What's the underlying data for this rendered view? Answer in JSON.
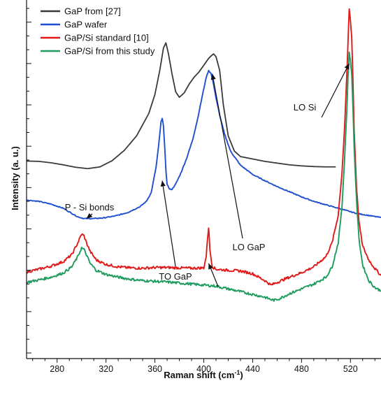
{
  "chart_data": {
    "type": "line",
    "xlabel": "Raman shift (cm",
    "xlabel_sup": "-1",
    "xlabel_end": ")",
    "ylabel": "Intensity (a. u.)",
    "xlim": [
      255,
      545
    ],
    "ylim": [
      0,
      100
    ],
    "x_ticks": [
      280,
      320,
      360,
      400,
      440,
      480,
      520
    ],
    "grid": false,
    "legend_position": "top-left",
    "series": [
      {
        "name": "GaP from [27]",
        "color": "#3a3a3a",
        "x": [
          255,
          265,
          275,
          285,
          295,
          305,
          315,
          325,
          335,
          345,
          355,
          360,
          364,
          367,
          369,
          371,
          374,
          377,
          380,
          384,
          388,
          392,
          396,
          400,
          404,
          406,
          408,
          410,
          413,
          416,
          420,
          425,
          430,
          440,
          450,
          460,
          470,
          480,
          490,
          500,
          508
        ],
        "y": [
          55.7,
          55.6,
          55.2,
          54.6,
          53.9,
          53.5,
          54.0,
          55.8,
          58.8,
          63.0,
          69.5,
          75.0,
          82.0,
          88.5,
          90.0,
          87.0,
          81.0,
          75.8,
          74.2,
          75.5,
          78.0,
          80.0,
          81.5,
          83.5,
          85.5,
          86.2,
          86.8,
          86.0,
          82.0,
          72.0,
          63.0,
          58.6,
          57.0,
          56.3,
          55.6,
          55.1,
          54.6,
          54.3,
          54.1,
          54.0,
          54.0
        ]
      },
      {
        "name": "GaP wafer",
        "color": "#1f4fd0",
        "x": [
          255,
          265,
          275,
          285,
          292,
          297,
          302,
          310,
          318,
          328,
          338,
          348,
          353,
          357,
          361,
          363,
          365,
          366,
          367,
          368,
          369,
          370,
          372,
          374,
          377,
          381,
          386,
          391,
          395,
          399,
          402,
          404,
          406,
          408,
          410,
          413,
          417,
          422,
          430,
          440,
          450,
          460,
          470,
          480,
          490,
          500,
          510,
          515,
          520,
          525,
          530,
          535,
          540,
          545
        ],
        "y": [
          44.4,
          44.0,
          43.2,
          42.0,
          40.5,
          39.5,
          39.0,
          39.0,
          39.2,
          39.8,
          40.8,
          42.5,
          44.0,
          46.5,
          54.0,
          60.0,
          67.0,
          68.0,
          66.0,
          60.0,
          53.0,
          49.0,
          47.5,
          47.5,
          49.0,
          52.0,
          56.5,
          62.0,
          68.0,
          75.0,
          80.0,
          82.0,
          81.0,
          78.0,
          74.0,
          69.0,
          63.5,
          58.5,
          54.5,
          51.8,
          50.0,
          48.3,
          46.8,
          45.3,
          44.0,
          43.0,
          42.0,
          41.5,
          41.0,
          40.5,
          40.2,
          39.9,
          39.6,
          39.3
        ]
      },
      {
        "name": "GaP/Si standard [10]",
        "color": "#e01919",
        "x": [
          255,
          265,
          275,
          285,
          292,
          297,
          300,
          302,
          304,
          307,
          312,
          320,
          330,
          340,
          350,
          360,
          370,
          380,
          390,
          400,
          402,
          403,
          404,
          405,
          407,
          410,
          420,
          430,
          440,
          450,
          455,
          460,
          470,
          480,
          490,
          500,
          505,
          510,
          513,
          515,
          517,
          518,
          519,
          520,
          521,
          522,
          523,
          525,
          527,
          530,
          535,
          540,
          545
        ],
        "y": [
          23.5,
          24.3,
          25.2,
          26.5,
          28.5,
          32.0,
          34.5,
          34.0,
          32.0,
          29.5,
          27.0,
          25.7,
          25.0,
          24.7,
          24.6,
          24.8,
          24.8,
          24.7,
          24.6,
          24.7,
          28.0,
          33.0,
          36.5,
          30.0,
          25.0,
          24.3,
          24.0,
          23.8,
          23.0,
          21.0,
          19.7,
          20.5,
          22.0,
          23.3,
          25.0,
          28.0,
          32.0,
          40.0,
          52.0,
          64.0,
          80.0,
          90.0,
          100.0,
          96.5,
          92.0,
          80.0,
          65.0,
          48.0,
          38.0,
          31.0,
          27.0,
          24.5,
          22.5
        ]
      },
      {
        "name": "GaP/Si from this study",
        "color": "#1e9b5e",
        "x": [
          255,
          265,
          275,
          285,
          292,
          297,
          300,
          302,
          304,
          307,
          312,
          320,
          330,
          340,
          350,
          360,
          370,
          380,
          390,
          400,
          410,
          420,
          430,
          440,
          450,
          455,
          458,
          462,
          470,
          480,
          490,
          500,
          505,
          510,
          513,
          515,
          517,
          518,
          519,
          520,
          521,
          522,
          523,
          525,
          527,
          530,
          535,
          540,
          545
        ],
        "y": [
          20.5,
          21.2,
          22.0,
          23.2,
          25.0,
          28.0,
          30.5,
          30.0,
          28.5,
          26.0,
          24.0,
          22.8,
          22.0,
          21.4,
          21.0,
          20.8,
          20.6,
          20.3,
          20.0,
          19.7,
          19.4,
          18.6,
          17.8,
          17.0,
          16.2,
          15.5,
          15.3,
          15.8,
          17.2,
          18.6,
          20.0,
          22.0,
          25.0,
          32.0,
          42.0,
          55.0,
          70.0,
          80.0,
          87.0,
          85.0,
          81.0,
          72.0,
          60.0,
          44.0,
          33.0,
          25.5,
          21.0,
          19.0,
          18.0
        ]
      }
    ],
    "annotations": [
      {
        "label": "P - Si bonds",
        "x": 304,
        "y": 39
      },
      {
        "label": "TO GaP",
        "x": 366,
        "y": 50
      },
      {
        "label": "LO GaP",
        "x": 407,
        "y": 81
      },
      {
        "label": "LO GaP",
        "x": 404,
        "y": 26
      },
      {
        "label": "LO Si",
        "x": 519,
        "y": 84
      }
    ]
  }
}
